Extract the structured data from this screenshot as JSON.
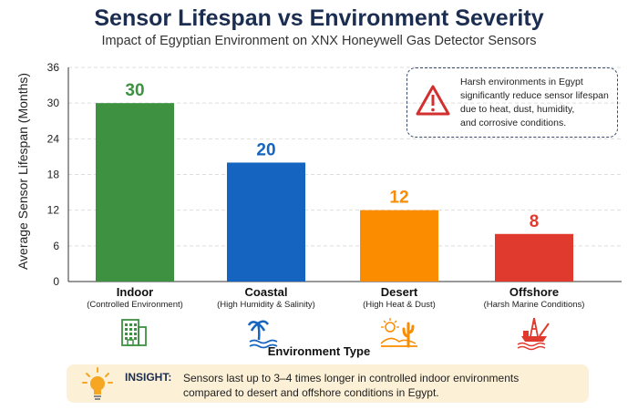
{
  "chart_data": {
    "type": "bar",
    "title": "Sensor Lifespan vs Environment Severity",
    "subtitle": "Impact of Egyptian Environment on XNX Honeywell Gas Detector Sensors",
    "xlabel": "Environment Type",
    "ylabel": "Average Sensor Lifespan (Months)",
    "ylim": [
      0,
      36
    ],
    "yticks": [
      0,
      6,
      12,
      18,
      24,
      30,
      36
    ],
    "grid": true,
    "categories": [
      "Indoor",
      "Coastal",
      "Desert",
      "Offshore"
    ],
    "category_subtitles": [
      "(Controlled Environment)",
      "(High Humidity & Salinity)",
      "(High Heat & Dust)",
      "(Harsh Marine Conditions)"
    ],
    "values": [
      30,
      20,
      12,
      8
    ],
    "data_labels": [
      "30",
      "20",
      "12",
      "8"
    ],
    "colors": [
      "#3d9140",
      "#1565c0",
      "#fb8c00",
      "#e03a2f"
    ],
    "icons": [
      "building-icon",
      "palm-beach-icon",
      "desert-cactus-icon",
      "offshore-rig-icon"
    ]
  },
  "callout": {
    "text": [
      "Harsh environments in Egypt",
      "significantly reduce sensor lifespan",
      "due to heat, dust, humidity,",
      "and corrosive conditions."
    ],
    "icon": "warning-icon",
    "color": "#d32f2f"
  },
  "insight": {
    "label": "INSIGHT:",
    "text": [
      "Sensors last up to 3–4 times longer in controlled indoor environments",
      "compared to desert and offshore conditions in Egypt."
    ],
    "icon": "lightbulb-icon"
  }
}
